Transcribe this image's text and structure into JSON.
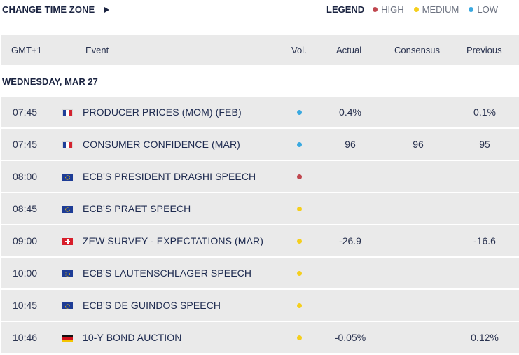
{
  "topbar": {
    "change_tz_label": "CHANGE TIME ZONE",
    "legend_label": "LEGEND",
    "legend": [
      {
        "key": "high",
        "label": "HIGH",
        "color": "#c0474f"
      },
      {
        "key": "medium",
        "label": "MEDIUM",
        "color": "#f5cf1d"
      },
      {
        "key": "low",
        "label": "LOW",
        "color": "#3aa9e0"
      }
    ]
  },
  "table": {
    "headers": {
      "time": "GMT+1",
      "event": "Event",
      "vol": "Vol.",
      "actual": "Actual",
      "consensus": "Consensus",
      "previous": "Previous"
    },
    "day_label": "WEDNESDAY, MAR 27",
    "rows": [
      {
        "time": "07:45",
        "flag": "flag-france-icon",
        "event": "PRODUCER PRICES (MOM) (FEB)",
        "volatility": "low",
        "actual": "0.4%",
        "consensus": "",
        "previous": "0.1%"
      },
      {
        "time": "07:45",
        "flag": "flag-france-icon",
        "event": "CONSUMER CONFIDENCE (MAR)",
        "volatility": "low",
        "actual": "96",
        "consensus": "96",
        "previous": "95"
      },
      {
        "time": "08:00",
        "flag": "flag-eu-icon",
        "event": "ECB'S PRESIDENT DRAGHI SPEECH",
        "volatility": "high",
        "actual": "",
        "consensus": "",
        "previous": ""
      },
      {
        "time": "08:45",
        "flag": "flag-eu-icon",
        "event": "ECB'S PRAET SPEECH",
        "volatility": "medium",
        "actual": "",
        "consensus": "",
        "previous": ""
      },
      {
        "time": "09:00",
        "flag": "flag-switzerland-icon",
        "event": "ZEW SURVEY - EXPECTATIONS (MAR)",
        "volatility": "medium",
        "actual": "-26.9",
        "consensus": "",
        "previous": "-16.6"
      },
      {
        "time": "10:00",
        "flag": "flag-eu-icon",
        "event": "ECB'S LAUTENSCHLAGER SPEECH",
        "volatility": "medium",
        "actual": "",
        "consensus": "",
        "previous": ""
      },
      {
        "time": "10:45",
        "flag": "flag-eu-icon",
        "event": "ECB'S DE GUINDOS SPEECH",
        "volatility": "medium",
        "actual": "",
        "consensus": "",
        "previous": ""
      },
      {
        "time": "10:46",
        "flag": "flag-germany-icon",
        "event": "10-Y BOND AUCTION",
        "volatility": "medium",
        "actual": "-0.05%",
        "consensus": "",
        "previous": "0.12%"
      }
    ]
  }
}
